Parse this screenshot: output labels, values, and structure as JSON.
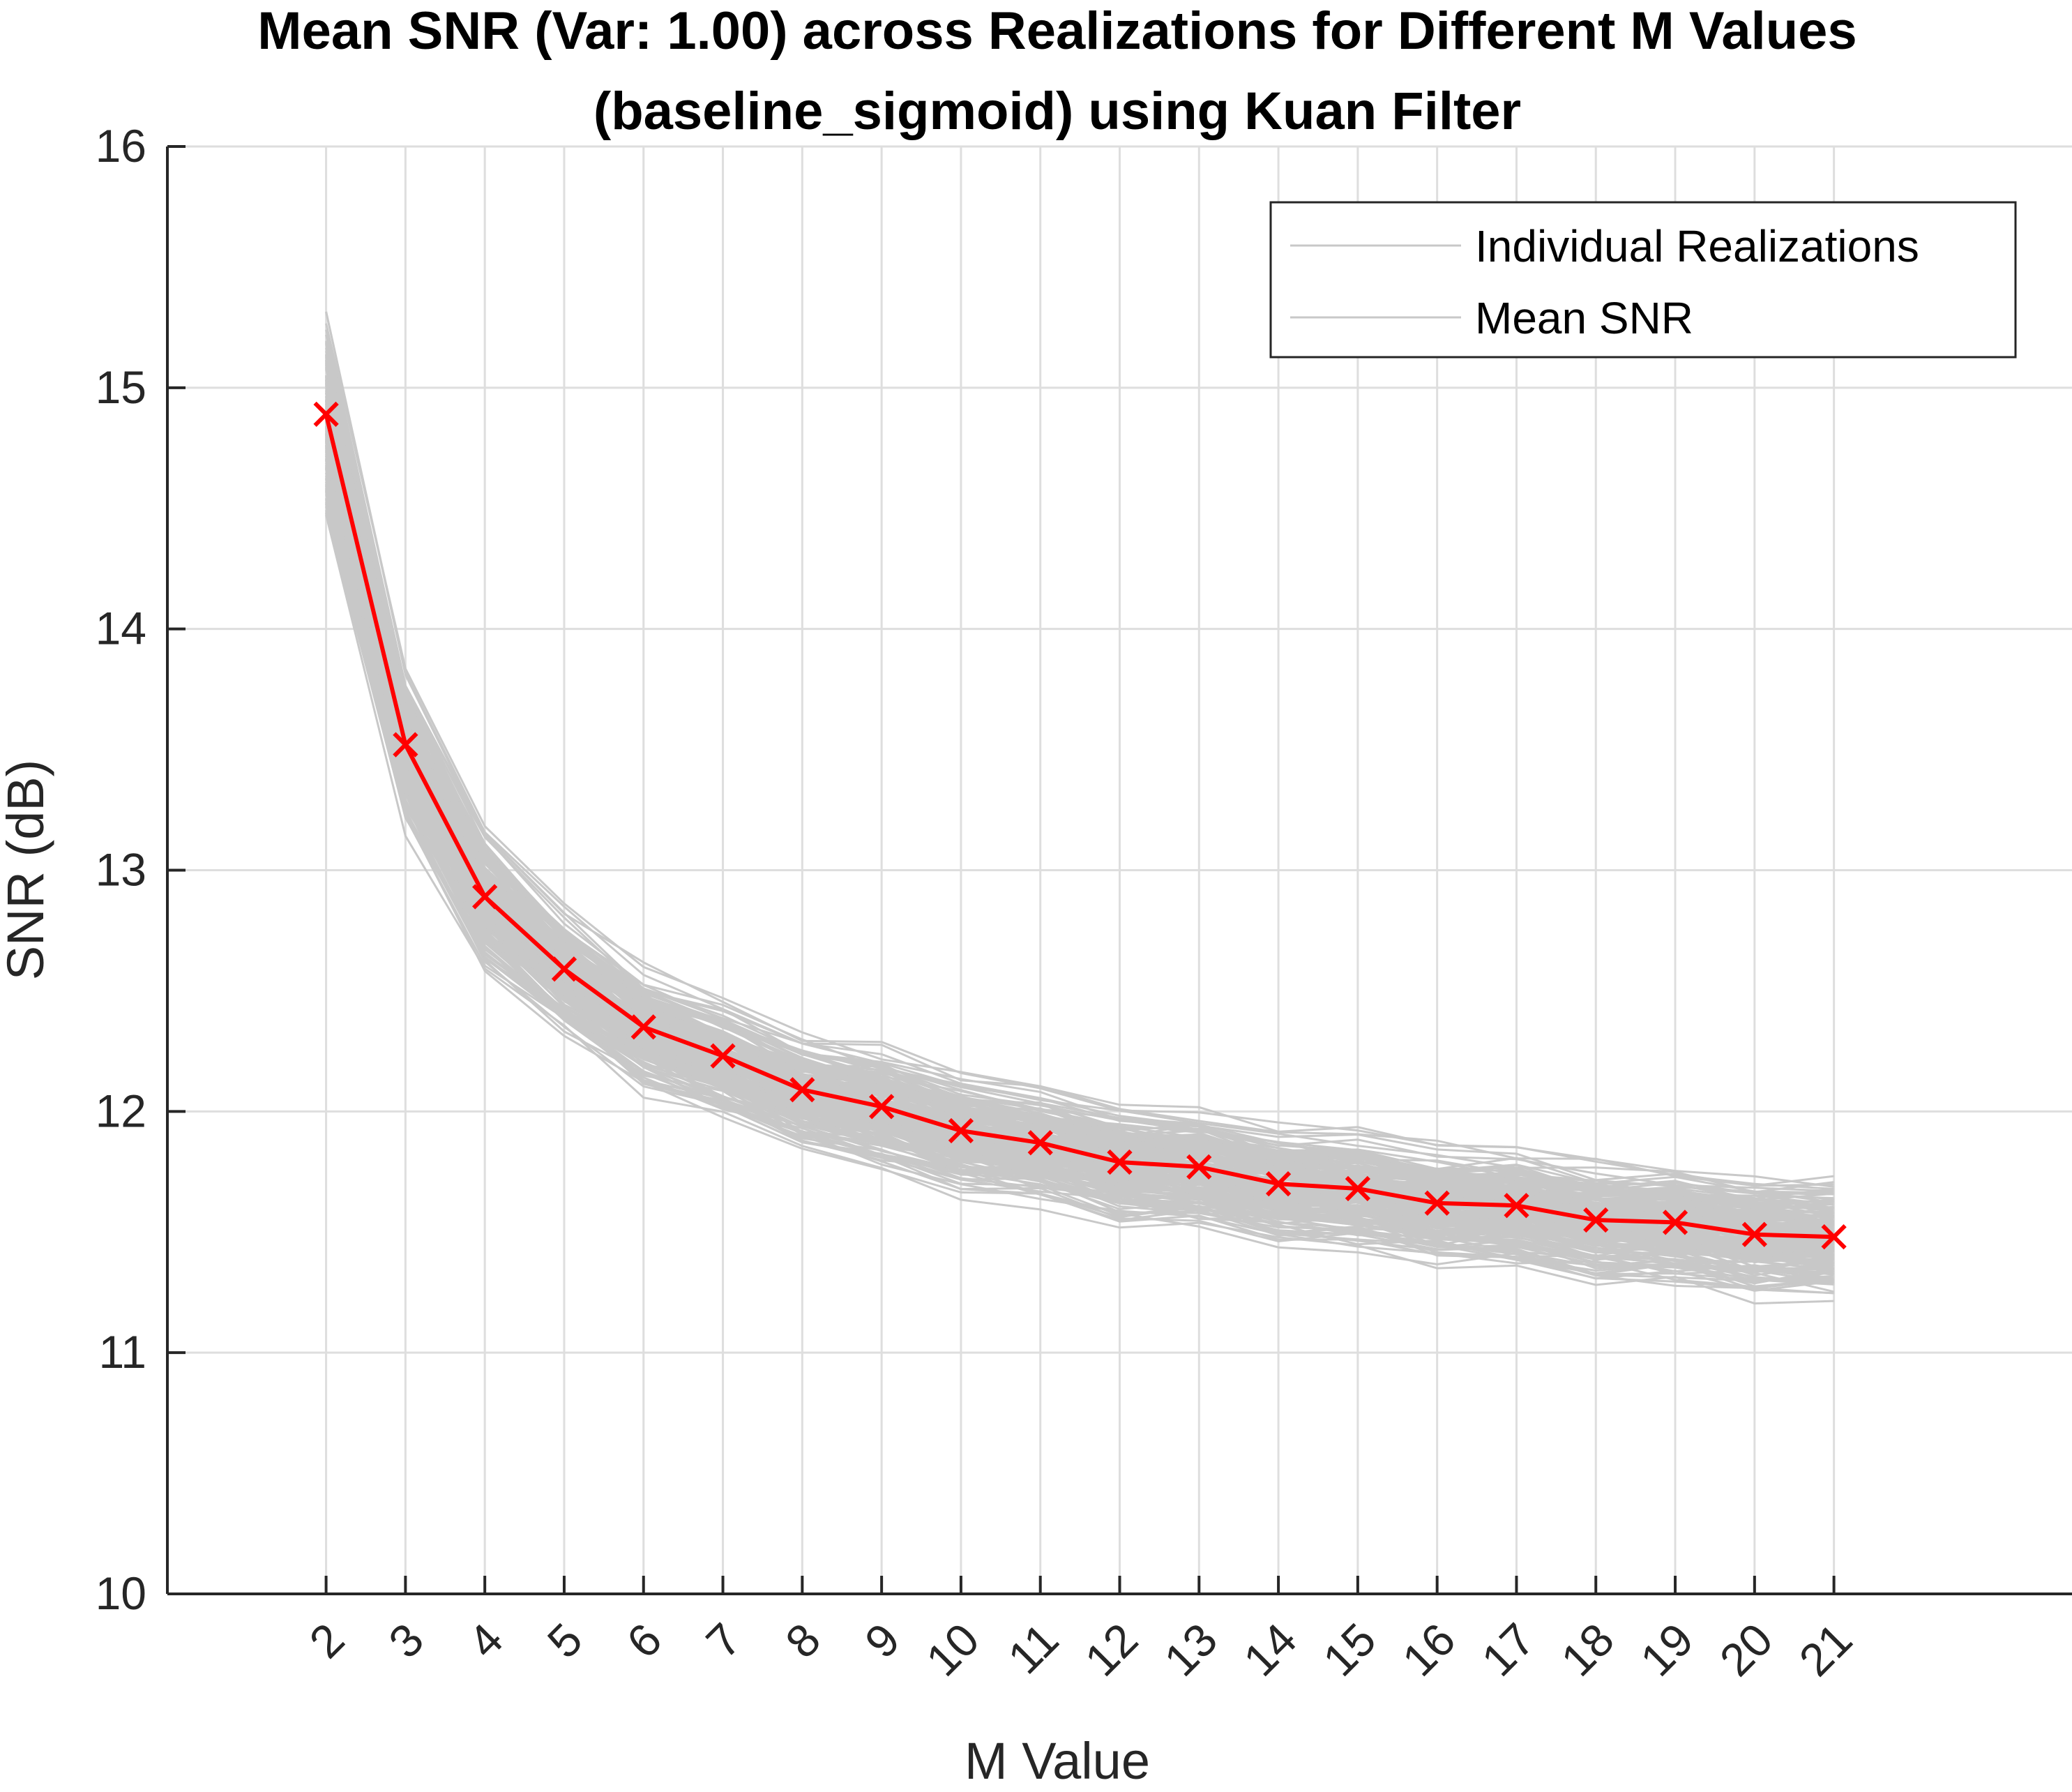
{
  "chart_data": {
    "type": "line",
    "title": [
      "Mean SNR (Var: 1.00) across Realizations for Different M Values",
      "(baseline_sigmoid) using Kuan Filter"
    ],
    "xlabel": "M Value",
    "ylabel": "SNR (dB)",
    "x": [
      2,
      3,
      4,
      5,
      6,
      7,
      8,
      9,
      10,
      11,
      12,
      13,
      14,
      15,
      16,
      17,
      18,
      19,
      20,
      21
    ],
    "xlim": [
      0,
      24
    ],
    "ylim": [
      10,
      16
    ],
    "yticks": [
      10,
      11,
      12,
      13,
      14,
      15,
      16
    ],
    "xtick_labels": [
      "2",
      "3",
      "4",
      "5",
      "6",
      "7",
      "8",
      "9",
      "10",
      "11",
      "12",
      "13",
      "14",
      "15",
      "16",
      "17",
      "18",
      "19",
      "20",
      "21"
    ],
    "grid": true,
    "legend": {
      "placement": "top-right",
      "entries": [
        "Individual Realizations",
        "Mean SNR"
      ]
    },
    "series": [
      {
        "name": "Mean SNR",
        "color": "#ff0000",
        "marker": "x",
        "values": [
          14.89,
          13.52,
          12.89,
          12.59,
          12.35,
          12.23,
          12.09,
          12.02,
          11.92,
          11.87,
          11.79,
          11.77,
          11.7,
          11.68,
          11.62,
          11.61,
          11.55,
          11.54,
          11.49,
          11.48
        ]
      }
    ],
    "realizations": {
      "name": "Individual Realizations",
      "color": "#c8c8c8",
      "count": 200,
      "spread": [
        0.45,
        0.35,
        0.3,
        0.27,
        0.26,
        0.25,
        0.25,
        0.25,
        0.25,
        0.25,
        0.25,
        0.25,
        0.25,
        0.25,
        0.25,
        0.25,
        0.25,
        0.25,
        0.25,
        0.25
      ]
    }
  }
}
